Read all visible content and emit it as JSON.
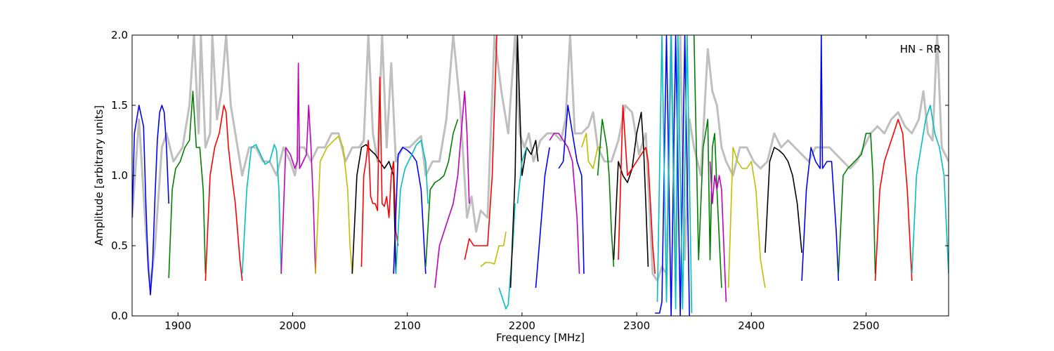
{
  "chart_data": {
    "type": "line",
    "annotation": "HN - RR",
    "xlabel": "Frequency [MHz]",
    "ylabel": "Amplitude [arbitrary units]",
    "xlim": [
      1860,
      2572
    ],
    "ylim": [
      0.0,
      2.0
    ],
    "xticks": [
      1900,
      2000,
      2100,
      2200,
      2300,
      2400,
      2500
    ],
    "xtick_labels": [
      "1900",
      "2000",
      "2100",
      "2200",
      "2300",
      "2400",
      "2500"
    ],
    "yticks": [
      0.0,
      0.5,
      1.0,
      1.5,
      2.0
    ],
    "ytick_labels": [
      "0.0",
      "0.5",
      "1.0",
      "1.5",
      "2.0"
    ],
    "grid": false,
    "colors": {
      "background_trace": "#bfbfbf",
      "palette": [
        "#0000ff",
        "#008000",
        "#ff0000",
        "#00bfbf",
        "#bf00bf",
        "#bfbf00",
        "#000000"
      ]
    },
    "background_trace": {
      "x": [
        1860,
        1866,
        1872,
        1876,
        1880,
        1886,
        1890,
        1896,
        1904,
        1910,
        1914,
        1918,
        1920,
        1924,
        1928,
        1930,
        1934,
        1938,
        1942,
        1946,
        1950,
        1956,
        1962,
        1968,
        1974,
        1980,
        1986,
        1992,
        1998,
        2002,
        2006,
        2010,
        2016,
        2022,
        2028,
        2034,
        2040,
        2046,
        2052,
        2058,
        2062,
        2066,
        2070,
        2074,
        2078,
        2082,
        2086,
        2090,
        2096,
        2102,
        2108,
        2112,
        2116,
        2122,
        2128,
        2134,
        2140,
        2146,
        2152,
        2156,
        2160,
        2164,
        2170,
        2176,
        2182,
        2188,
        2194,
        2198,
        2202,
        2206,
        2210,
        2216,
        2222,
        2228,
        2234,
        2238,
        2242,
        2246,
        2252,
        2258,
        2262,
        2266,
        2272,
        2278,
        2284,
        2290,
        2296,
        2302,
        2308,
        2314,
        2318,
        2322,
        2326,
        2330,
        2334,
        2338,
        2342,
        2346,
        2350,
        2356,
        2362,
        2366,
        2370,
        2374,
        2378,
        2384,
        2390,
        2396,
        2402,
        2408,
        2414,
        2420,
        2426,
        2432,
        2438,
        2444,
        2450,
        2456,
        2462,
        2468,
        2474,
        2480,
        2486,
        2492,
        2498,
        2504,
        2510,
        2516,
        2522,
        2528,
        2534,
        2540,
        2546,
        2550,
        2554,
        2558,
        2562,
        2566,
        2572
      ],
      "y": [
        0.7,
        1.4,
        0.6,
        0.2,
        0.5,
        1.2,
        1.3,
        1.1,
        1.2,
        1.5,
        2.0,
        1.3,
        2.0,
        1.2,
        1.3,
        2.0,
        1.4,
        1.6,
        2.0,
        1.5,
        1.3,
        1.0,
        1.2,
        1.2,
        1.1,
        1.1,
        1.0,
        1.2,
        1.1,
        1.0,
        1.2,
        1.2,
        1.1,
        1.2,
        1.2,
        1.3,
        1.3,
        1.1,
        1.2,
        1.2,
        1.25,
        2.0,
        1.3,
        1.1,
        2.0,
        1.2,
        1.8,
        1.1,
        1.2,
        1.2,
        1.25,
        1.28,
        1.0,
        1.1,
        1.1,
        1.4,
        2.0,
        1.5,
        0.7,
        0.85,
        0.6,
        0.75,
        0.7,
        2.0,
        1.6,
        1.3,
        2.0,
        1.3,
        1.2,
        1.3,
        1.1,
        1.25,
        1.3,
        1.3,
        1.25,
        1.4,
        2.0,
        1.3,
        1.3,
        1.35,
        1.45,
        1.2,
        1.1,
        1.1,
        1.25,
        1.5,
        1.45,
        1.15,
        1.3,
        0.3,
        0.25,
        0.35,
        0.3,
        2.0,
        0.25,
        2.0,
        0.4,
        1.4,
        1.2,
        1.0,
        1.9,
        1.6,
        1.5,
        1.2,
        1.1,
        1.0,
        1.2,
        1.2,
        1.1,
        1.05,
        1.1,
        1.3,
        1.2,
        1.25,
        1.2,
        1.15,
        1.1,
        1.2,
        1.2,
        1.2,
        1.15,
        1.1,
        1.05,
        1.1,
        1.2,
        1.3,
        1.35,
        1.3,
        1.4,
        1.45,
        1.35,
        1.3,
        1.4,
        1.6,
        1.3,
        1.25,
        2.0,
        1.2,
        1.1
      ]
    },
    "series": [
      {
        "color": "#0000ff",
        "x": [
          1860,
          1862,
          1866,
          1870,
          1872,
          1874,
          1876,
          1878,
          1880,
          1882,
          1884,
          1886,
          1888,
          1890,
          1892
        ],
        "y": [
          0.7,
          1.3,
          1.5,
          1.35,
          0.8,
          0.35,
          0.15,
          0.4,
          0.85,
          1.25,
          1.45,
          1.5,
          1.45,
          1.2,
          0.8
        ]
      },
      {
        "color": "#008000",
        "x": [
          1892,
          1895,
          1898,
          1902,
          1906,
          1910,
          1913,
          1916,
          1919,
          1922,
          1924
        ],
        "y": [
          0.27,
          0.9,
          1.05,
          1.1,
          1.2,
          1.25,
          1.6,
          1.2,
          1.2,
          0.9,
          0.3
        ]
      },
      {
        "color": "#ff0000",
        "x": [
          1924,
          1928,
          1932,
          1936,
          1940,
          1942,
          1944,
          1946,
          1950,
          1954,
          1956
        ],
        "y": [
          0.25,
          1.0,
          1.2,
          1.3,
          1.5,
          1.45,
          1.2,
          1.05,
          0.8,
          0.4,
          0.25
        ]
      },
      {
        "color": "#00bfbf",
        "x": [
          1956,
          1960,
          1964,
          1968,
          1972,
          1976,
          1980,
          1984,
          1986,
          1988,
          1990
        ],
        "y": [
          0.3,
          0.9,
          1.2,
          1.22,
          1.15,
          1.08,
          1.1,
          1.22,
          1.18,
          0.9,
          0.3
        ]
      },
      {
        "color": "#bf00bf",
        "x": [
          1990,
          1994,
          1998,
          2002,
          2004,
          2005,
          2006,
          2008,
          2012,
          2014,
          2016,
          2018,
          2020
        ],
        "y": [
          0.3,
          1.2,
          1.15,
          1.05,
          1.1,
          1.8,
          1.05,
          1.08,
          1.15,
          1.5,
          1.2,
          0.8,
          0.3
        ]
      },
      {
        "color": "#bfbf00",
        "x": [
          2020,
          2024,
          2030,
          2036,
          2040,
          2044,
          2048,
          2050,
          2052
        ],
        "y": [
          0.3,
          1.1,
          1.2,
          1.25,
          1.28,
          1.2,
          0.9,
          0.5,
          0.3
        ]
      },
      {
        "color": "#000000",
        "x": [
          2052,
          2056,
          2060,
          2064,
          2068,
          2072,
          2076,
          2080,
          2084,
          2088,
          2090
        ],
        "y": [
          0.3,
          1.0,
          1.2,
          1.22,
          1.18,
          1.15,
          1.1,
          1.05,
          1.1,
          1.0,
          0.3
        ]
      },
      {
        "color": "#ff0000",
        "x": [
          2060,
          2062,
          2064,
          2066,
          2068,
          2070,
          2072,
          2074,
          2076,
          2078,
          2080,
          2082,
          2084,
          2086,
          2088,
          2090,
          2092
        ],
        "y": [
          0.35,
          1.0,
          1.1,
          1.25,
          0.85,
          0.8,
          0.8,
          0.75,
          1.7,
          0.8,
          0.78,
          0.85,
          0.7,
          1.0,
          1.1,
          0.6,
          0.5
        ]
      },
      {
        "color": "#0000ff",
        "x": [
          2088,
          2092,
          2096,
          2100,
          2104,
          2108,
          2112,
          2116
        ],
        "y": [
          0.3,
          1.15,
          1.2,
          1.18,
          1.15,
          1.1,
          0.9,
          0.3
        ]
      },
      {
        "color": "#00bfbf",
        "x": [
          2090,
          2094,
          2098,
          2104,
          2108,
          2112,
          2116,
          2118
        ],
        "y": [
          0.3,
          0.9,
          1.05,
          1.15,
          1.22,
          1.25,
          1.1,
          0.8
        ]
      },
      {
        "color": "#008000",
        "x": [
          2116,
          2120,
          2124,
          2128,
          2132,
          2136,
          2140,
          2144
        ],
        "y": [
          0.35,
          0.9,
          0.95,
          0.97,
          1.0,
          1.1,
          1.3,
          1.4
        ]
      },
      {
        "color": "#bf00bf",
        "x": [
          2124,
          2128,
          2132,
          2136,
          2140,
          2144,
          2148,
          2150,
          2152,
          2154
        ],
        "y": [
          0.2,
          0.5,
          0.6,
          0.7,
          0.8,
          1.0,
          1.4,
          1.6,
          1.3,
          0.8
        ]
      },
      {
        "color": "#ff0000",
        "x": [
          2150,
          2154,
          2158,
          2162,
          2166,
          2170,
          2174,
          2178
        ],
        "y": [
          0.4,
          0.55,
          0.5,
          0.5,
          0.5,
          0.5,
          1.0,
          2.0
        ]
      },
      {
        "color": "#bfbf00",
        "x": [
          2164,
          2168,
          2172,
          2176,
          2180,
          2184,
          2186
        ],
        "y": [
          0.35,
          0.38,
          0.38,
          0.37,
          0.5,
          0.5,
          0.6
        ]
      },
      {
        "color": "#00bfbf",
        "x": [
          2180,
          2184,
          2186,
          2188,
          2190,
          2192,
          2194
        ],
        "y": [
          0.2,
          0.1,
          0.05,
          0.08,
          0.3,
          0.5,
          0.8
        ]
      },
      {
        "color": "#000000",
        "x": [
          2190,
          2192,
          2194,
          2196,
          2200,
          2204,
          2208,
          2212,
          2214
        ],
        "y": [
          0.2,
          0.6,
          1.0,
          2.0,
          1.0,
          1.2,
          1.15,
          1.25,
          1.1
        ]
      },
      {
        "color": "#00bfbf",
        "x": [
          2196,
          2200,
          2204
        ],
        "y": [
          0.8,
          1.1,
          1.2
        ]
      },
      {
        "color": "#0000ff",
        "x": [
          2212,
          2216,
          2220,
          2222,
          2224
        ],
        "y": [
          0.2,
          0.6,
          1.0,
          1.1,
          1.2
        ]
      },
      {
        "color": "#bf00bf",
        "x": [
          2224,
          2228,
          2232,
          2236,
          2240,
          2244,
          2248,
          2250
        ],
        "y": [
          1.25,
          1.3,
          1.3,
          1.25,
          1.2,
          1.1,
          0.7,
          0.3
        ]
      },
      {
        "color": "#0000ff",
        "x": [
          2232,
          2236,
          2240,
          2244,
          2248,
          2252,
          2254
        ],
        "y": [
          1.05,
          1.1,
          1.5,
          1.3,
          1.1,
          1.0,
          0.3
        ]
      },
      {
        "color": "#bfbf00",
        "x": [
          2252,
          2256,
          2258,
          2262,
          2266,
          2270
        ],
        "y": [
          1.2,
          1.3,
          1.1,
          1.05,
          1.2,
          1.2
        ]
      },
      {
        "color": "#008000",
        "x": [
          2266,
          2270,
          2274,
          2276,
          2278,
          2280
        ],
        "y": [
          1.0,
          1.4,
          1.2,
          1.0,
          0.6,
          0.35
        ]
      },
      {
        "color": "#000000",
        "x": [
          2280,
          2284,
          2288,
          2292,
          2296,
          2300,
          2304,
          2306,
          2308,
          2310
        ],
        "y": [
          0.4,
          1.1,
          1.0,
          0.95,
          1.05,
          1.3,
          1.45,
          1.2,
          0.8,
          0.35
        ]
      },
      {
        "color": "#ff0000",
        "x": [
          2284,
          2288,
          2292,
          2296,
          2300,
          2304,
          2308,
          2310,
          2312,
          2314,
          2316
        ],
        "y": [
          0.4,
          1.5,
          1.0,
          1.05,
          1.1,
          1.15,
          1.2,
          1.1,
          0.8,
          0.5,
          0.3
        ]
      },
      {
        "color": "#0000ff",
        "x": [
          2316,
          2320,
          2322,
          2326,
          2330,
          2334,
          2338,
          2342,
          2346
        ],
        "y": [
          0.02,
          0.02,
          0.1,
          2.0,
          0.0,
          2.0,
          0.0,
          2.0,
          0.0
        ]
      },
      {
        "color": "#00bfbf",
        "x": [
          2318,
          2322,
          2326,
          2330,
          2334,
          2336,
          2340,
          2344,
          2348
        ],
        "y": [
          0.1,
          2.0,
          0.1,
          2.0,
          0.05,
          2.0,
          0.05,
          2.0,
          0.02
        ]
      },
      {
        "color": "#008000",
        "x": [
          2350,
          2354,
          2358,
          2362,
          2364,
          2366,
          2368,
          2370,
          2374
        ],
        "y": [
          2.0,
          0.4,
          1.2,
          1.4,
          0.4,
          1.2,
          1.3,
          0.9,
          0.2
        ]
      },
      {
        "color": "#bf00bf",
        "x": [
          2364,
          2366,
          2368,
          2370,
          2372,
          2374,
          2376,
          2378
        ],
        "y": [
          1.1,
          0.8,
          1.0,
          0.9,
          1.0,
          0.9,
          0.5,
          0.1
        ]
      },
      {
        "color": "#bfbf00",
        "x": [
          2380,
          2384,
          2388,
          2392,
          2396,
          2400,
          2404,
          2408,
          2412
        ],
        "y": [
          0.2,
          1.2,
          1.1,
          1.05,
          1.05,
          1.1,
          0.9,
          0.4,
          0.2
        ]
      },
      {
        "color": "#000000",
        "x": [
          2412,
          2416,
          2420,
          2424,
          2428,
          2432,
          2436,
          2440,
          2444
        ],
        "y": [
          0.45,
          1.1,
          1.2,
          1.18,
          1.15,
          1.1,
          1.0,
          0.8,
          0.45
        ]
      },
      {
        "color": "#0000ff",
        "x": [
          2444,
          2448,
          2452,
          2456,
          2460,
          2461,
          2462,
          2466,
          2470,
          2474,
          2476
        ],
        "y": [
          0.25,
          0.9,
          1.2,
          1.1,
          1.05,
          2.0,
          1.05,
          1.1,
          1.1,
          0.6,
          0.25
        ]
      },
      {
        "color": "#008000",
        "x": [
          2476,
          2480,
          2484,
          2490,
          2496,
          2500,
          2504,
          2506,
          2508
        ],
        "y": [
          0.3,
          1.0,
          1.05,
          1.1,
          1.15,
          1.3,
          1.3,
          1.0,
          0.3
        ]
      },
      {
        "color": "#ff0000",
        "x": [
          2508,
          2512,
          2516,
          2520,
          2524,
          2528,
          2532,
          2536,
          2540
        ],
        "y": [
          0.25,
          0.9,
          1.1,
          1.2,
          1.3,
          1.4,
          1.3,
          0.9,
          0.25
        ]
      },
      {
        "color": "#00bfbf",
        "x": [
          2540,
          2544,
          2548,
          2552,
          2556,
          2560,
          2564,
          2568,
          2572
        ],
        "y": [
          0.3,
          1.0,
          1.2,
          1.4,
          1.5,
          1.3,
          1.2,
          1.0,
          0.3
        ]
      }
    ]
  }
}
